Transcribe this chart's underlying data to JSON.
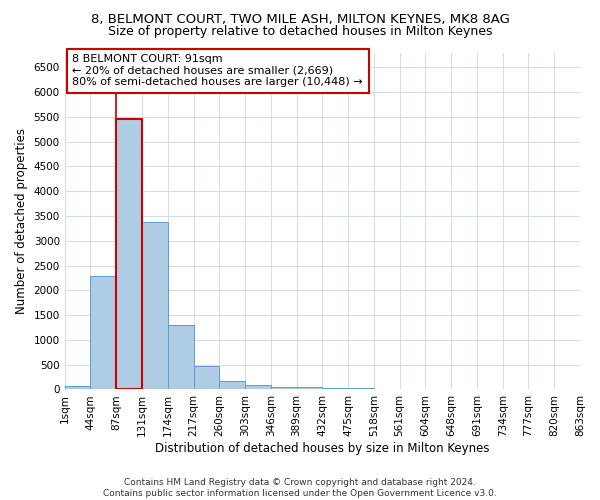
{
  "title_line1": "8, BELMONT COURT, TWO MILE ASH, MILTON KEYNES, MK8 8AG",
  "title_line2": "Size of property relative to detached houses in Milton Keynes",
  "xlabel": "Distribution of detached houses by size in Milton Keynes",
  "ylabel": "Number of detached properties",
  "footer_line1": "Contains HM Land Registry data © Crown copyright and database right 2024.",
  "footer_line2": "Contains public sector information licensed under the Open Government Licence v3.0.",
  "annotation_title": "8 BELMONT COURT: 91sqm",
  "annotation_line1": "← 20% of detached houses are smaller (2,669)",
  "annotation_line2": "80% of semi-detached houses are larger (10,448) →",
  "bar_color": "#aecce4",
  "bar_edge_color": "#5b9bd5",
  "vline_color": "#cc0000",
  "bin_labels": [
    "1sqm",
    "44sqm",
    "87sqm",
    "131sqm",
    "174sqm",
    "217sqm",
    "260sqm",
    "303sqm",
    "346sqm",
    "389sqm",
    "432sqm",
    "475sqm",
    "518sqm",
    "561sqm",
    "604sqm",
    "648sqm",
    "691sqm",
    "734sqm",
    "777sqm",
    "820sqm",
    "863sqm"
  ],
  "bar_heights": [
    70,
    2280,
    5450,
    3380,
    1310,
    480,
    175,
    85,
    50,
    50,
    30,
    30,
    0,
    0,
    0,
    0,
    0,
    0,
    0,
    0
  ],
  "highlight_bin_index": 2,
  "vline_bin_index": 2,
  "ylim": [
    0,
    6800
  ],
  "yticks": [
    0,
    500,
    1000,
    1500,
    2000,
    2500,
    3000,
    3500,
    4000,
    4500,
    5000,
    5500,
    6000,
    6500
  ],
  "background_color": "#ffffff",
  "grid_color": "#d0dde8",
  "title_fontsize": 9.5,
  "subtitle_fontsize": 9,
  "axis_label_fontsize": 8.5,
  "tick_fontsize": 7.5,
  "annotation_fontsize": 8,
  "footer_fontsize": 6.5
}
